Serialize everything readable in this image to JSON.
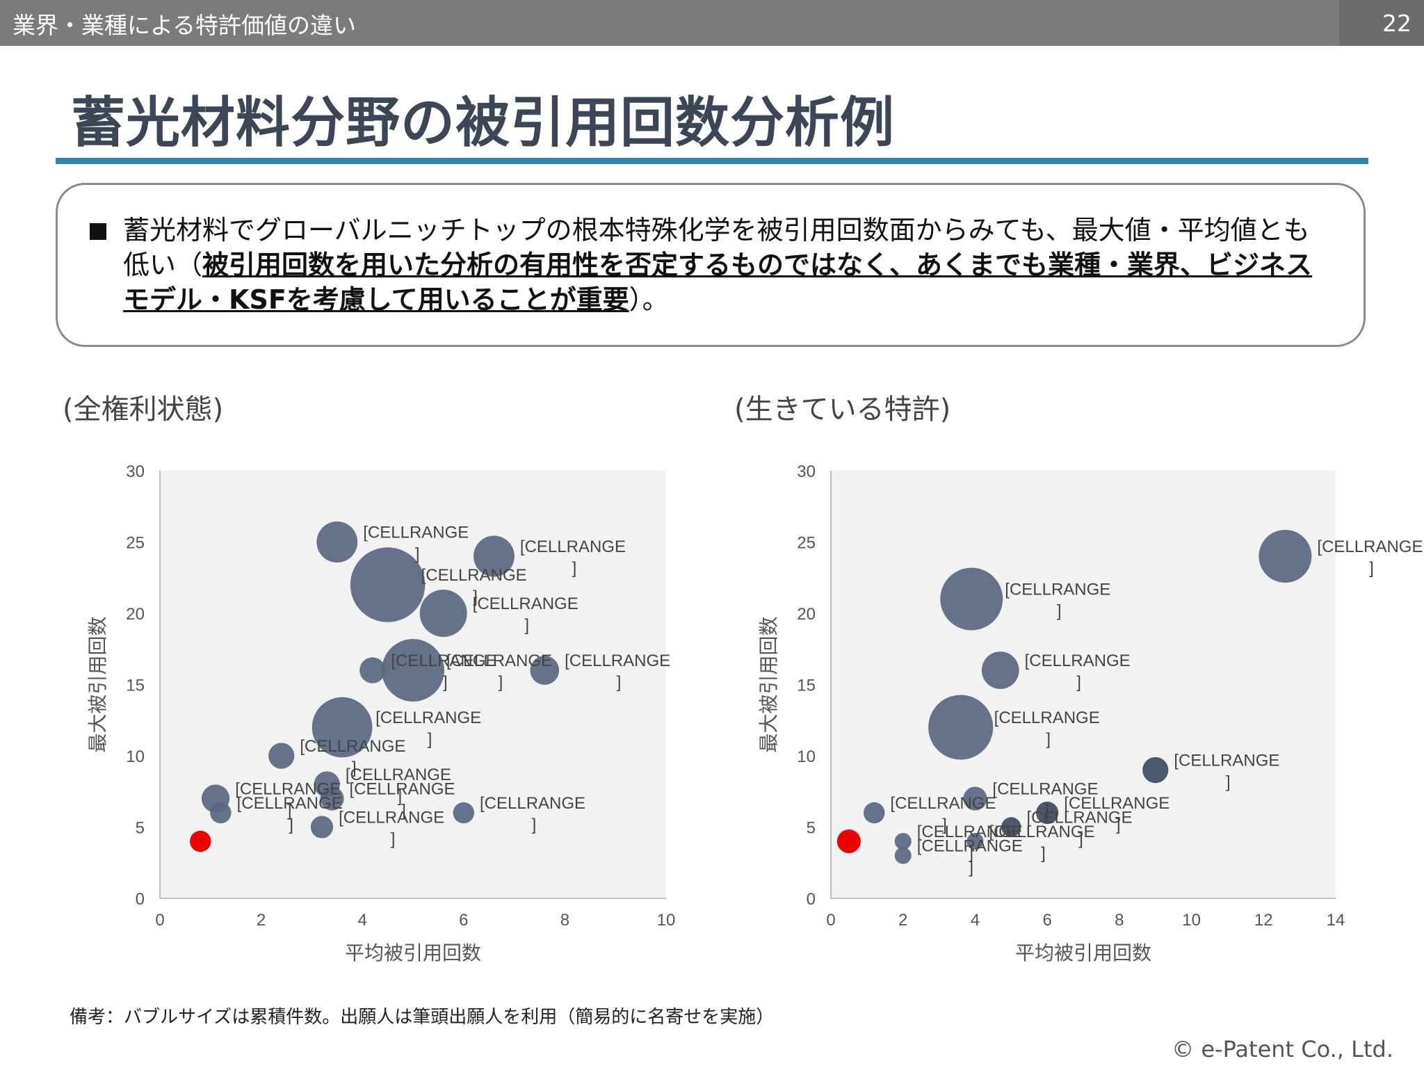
{
  "header": {
    "section_title": "業界・業種による特許価値の違い",
    "page_number": "22"
  },
  "slide": {
    "title": "蓄光材料分野の被引用回数分析例"
  },
  "callout": {
    "text_plain_1": "蓄光材料でグローバルニッチトップの根本特殊化学を被引用回数面からみても、最大値・平均値とも低い（",
    "text_bold": "被引用回数を用いた分析の有用性を否定するものではなく、あくまでも業種・業界、ビジネスモデル・KSFを考慮して用いることが重要",
    "text_plain_2": "）。"
  },
  "panels": {
    "left_label": "(全権利状態)",
    "right_label": "(生きている特許)"
  },
  "footnote": "備考：バブルサイズは累積件数。出願人は筆頭出願人を利用（簡易的に名寄せを実施）",
  "copyright": "© e-Patent Co., Ltd.",
  "colors": {
    "bubble": "#5a6780",
    "bubble_dark": "#3e4b63",
    "highlight": "#ee0000",
    "plot_bg": "#f2f2f2",
    "accent_rule": "#2e86a8"
  },
  "chart_data": [
    {
      "type": "scatter",
      "subtype": "bubble",
      "xlabel": "平均被引用回数",
      "ylabel": "最大被引用回数",
      "xlim": [
        0,
        10
      ],
      "ylim": [
        0,
        30
      ],
      "xticks": [
        0,
        2,
        4,
        6,
        8,
        10
      ],
      "yticks": [
        0,
        5,
        10,
        15,
        20,
        25,
        30
      ],
      "grid": false,
      "point_label": "[CELLRANGE]",
      "points": [
        {
          "x": 3.5,
          "y": 25,
          "size": 3,
          "label": "[CELLRANGE]"
        },
        {
          "x": 6.6,
          "y": 24,
          "size": 3,
          "label": "[CELLRANGE]"
        },
        {
          "x": 4.5,
          "y": 22,
          "size": 10,
          "label": "[CELLRANGE]"
        },
        {
          "x": 5.6,
          "y": 20,
          "size": 4,
          "label": "[CELLRANGE]"
        },
        {
          "x": 4.2,
          "y": 16,
          "size": 1.2,
          "label": "[CELLRANGE]"
        },
        {
          "x": 5.0,
          "y": 16,
          "size": 7,
          "label": "[CELLRANGE]"
        },
        {
          "x": 7.6,
          "y": 16,
          "size": 1.5,
          "label": "[CELLRANGE]"
        },
        {
          "x": 3.6,
          "y": 12,
          "size": 6.5,
          "label": "[CELLRANGE]"
        },
        {
          "x": 2.4,
          "y": 10,
          "size": 1.2,
          "label": "[CELLRANGE]"
        },
        {
          "x": 3.3,
          "y": 8,
          "size": 1.2,
          "label": "[CELLRANGE]"
        },
        {
          "x": 1.1,
          "y": 7,
          "size": 1.4,
          "label": "[CELLRANGE]"
        },
        {
          "x": 3.4,
          "y": 7,
          "size": 1.0,
          "label": "[CELLRANGE]"
        },
        {
          "x": 1.2,
          "y": 6,
          "size": 0.8,
          "label": "[CELLRANGE]"
        },
        {
          "x": 6.0,
          "y": 6,
          "size": 0.8,
          "label": "[CELLRANGE]"
        },
        {
          "x": 3.2,
          "y": 5,
          "size": 0.9,
          "label": "[CELLRANGE]"
        },
        {
          "x": 0.8,
          "y": 4,
          "size": 0.8,
          "label": "",
          "highlight": true
        }
      ]
    },
    {
      "type": "scatter",
      "subtype": "bubble",
      "xlabel": "平均被引用回数",
      "ylabel": "最大被引用回数",
      "xlim": [
        0,
        14
      ],
      "ylim": [
        0,
        30
      ],
      "xticks": [
        0,
        2,
        4,
        6,
        8,
        10,
        12,
        14
      ],
      "yticks": [
        0,
        5,
        10,
        15,
        20,
        25,
        30
      ],
      "grid": false,
      "point_label": "[CELLRANGE]",
      "points": [
        {
          "x": 12.6,
          "y": 24,
          "size": 5,
          "label": "[CELLRANGE]"
        },
        {
          "x": 3.9,
          "y": 21,
          "size": 7,
          "label": "[CELLRANGE]"
        },
        {
          "x": 4.7,
          "y": 16,
          "size": 2.5,
          "label": "[CELLRANGE]"
        },
        {
          "x": 3.6,
          "y": 12,
          "size": 7.5,
          "label": "[CELLRANGE]"
        },
        {
          "x": 9.0,
          "y": 9,
          "size": 1.2,
          "label": "[CELLRANGE]",
          "dark": true
        },
        {
          "x": 4.0,
          "y": 7,
          "size": 1.0,
          "label": "[CELLRANGE]"
        },
        {
          "x": 1.2,
          "y": 6,
          "size": 0.8,
          "label": "[CELLRANGE]"
        },
        {
          "x": 6.0,
          "y": 6,
          "size": 0.9,
          "label": "[CELLRANGE]",
          "dark": true
        },
        {
          "x": 5.0,
          "y": 5,
          "size": 0.7,
          "label": "[CELLRANGE]",
          "dark": true
        },
        {
          "x": 2.0,
          "y": 4,
          "size": 0.5,
          "label": "[CELLRANGE]"
        },
        {
          "x": 4.0,
          "y": 4,
          "size": 0.5,
          "label": "[CELLRANGE]"
        },
        {
          "x": 2.0,
          "y": 3,
          "size": 0.5,
          "label": "[CELLRANGE]"
        },
        {
          "x": 0.5,
          "y": 4,
          "size": 1.0,
          "label": "",
          "highlight": true
        }
      ]
    }
  ]
}
